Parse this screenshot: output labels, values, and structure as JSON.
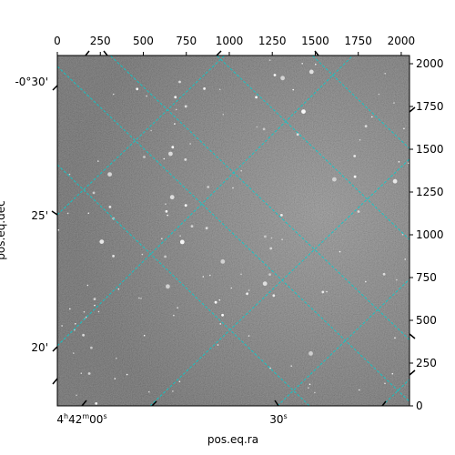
{
  "chart_data": {
    "type": "image",
    "xlabel": "pos.eq.ra",
    "ylabel": "pos.eq.dec",
    "pixel_axes": {
      "x_ticks": [
        0,
        250,
        500,
        750,
        1000,
        1250,
        1500,
        1750,
        2000
      ],
      "y_ticks": [
        0,
        250,
        500,
        750,
        1000,
        1250,
        1500,
        1750,
        2000
      ],
      "xlim": [
        0,
        2048
      ],
      "ylim": [
        0,
        2048
      ]
    },
    "world_axes": {
      "ra_ticks": [
        {
          "label_h": "4",
          "h_unit": "h",
          "label_m": "42",
          "m_unit": "m",
          "label_s": "00",
          "s_unit": "s"
        },
        {
          "label_h": "",
          "h_unit": "",
          "label_m": "",
          "m_unit": "",
          "label_s": "30",
          "s_unit": "s"
        }
      ],
      "dec_ticks": [
        "-0°30'",
        "25'",
        "20'"
      ]
    },
    "image_colormap": "gray",
    "grid_color": "#00d0d0",
    "grid": true
  }
}
